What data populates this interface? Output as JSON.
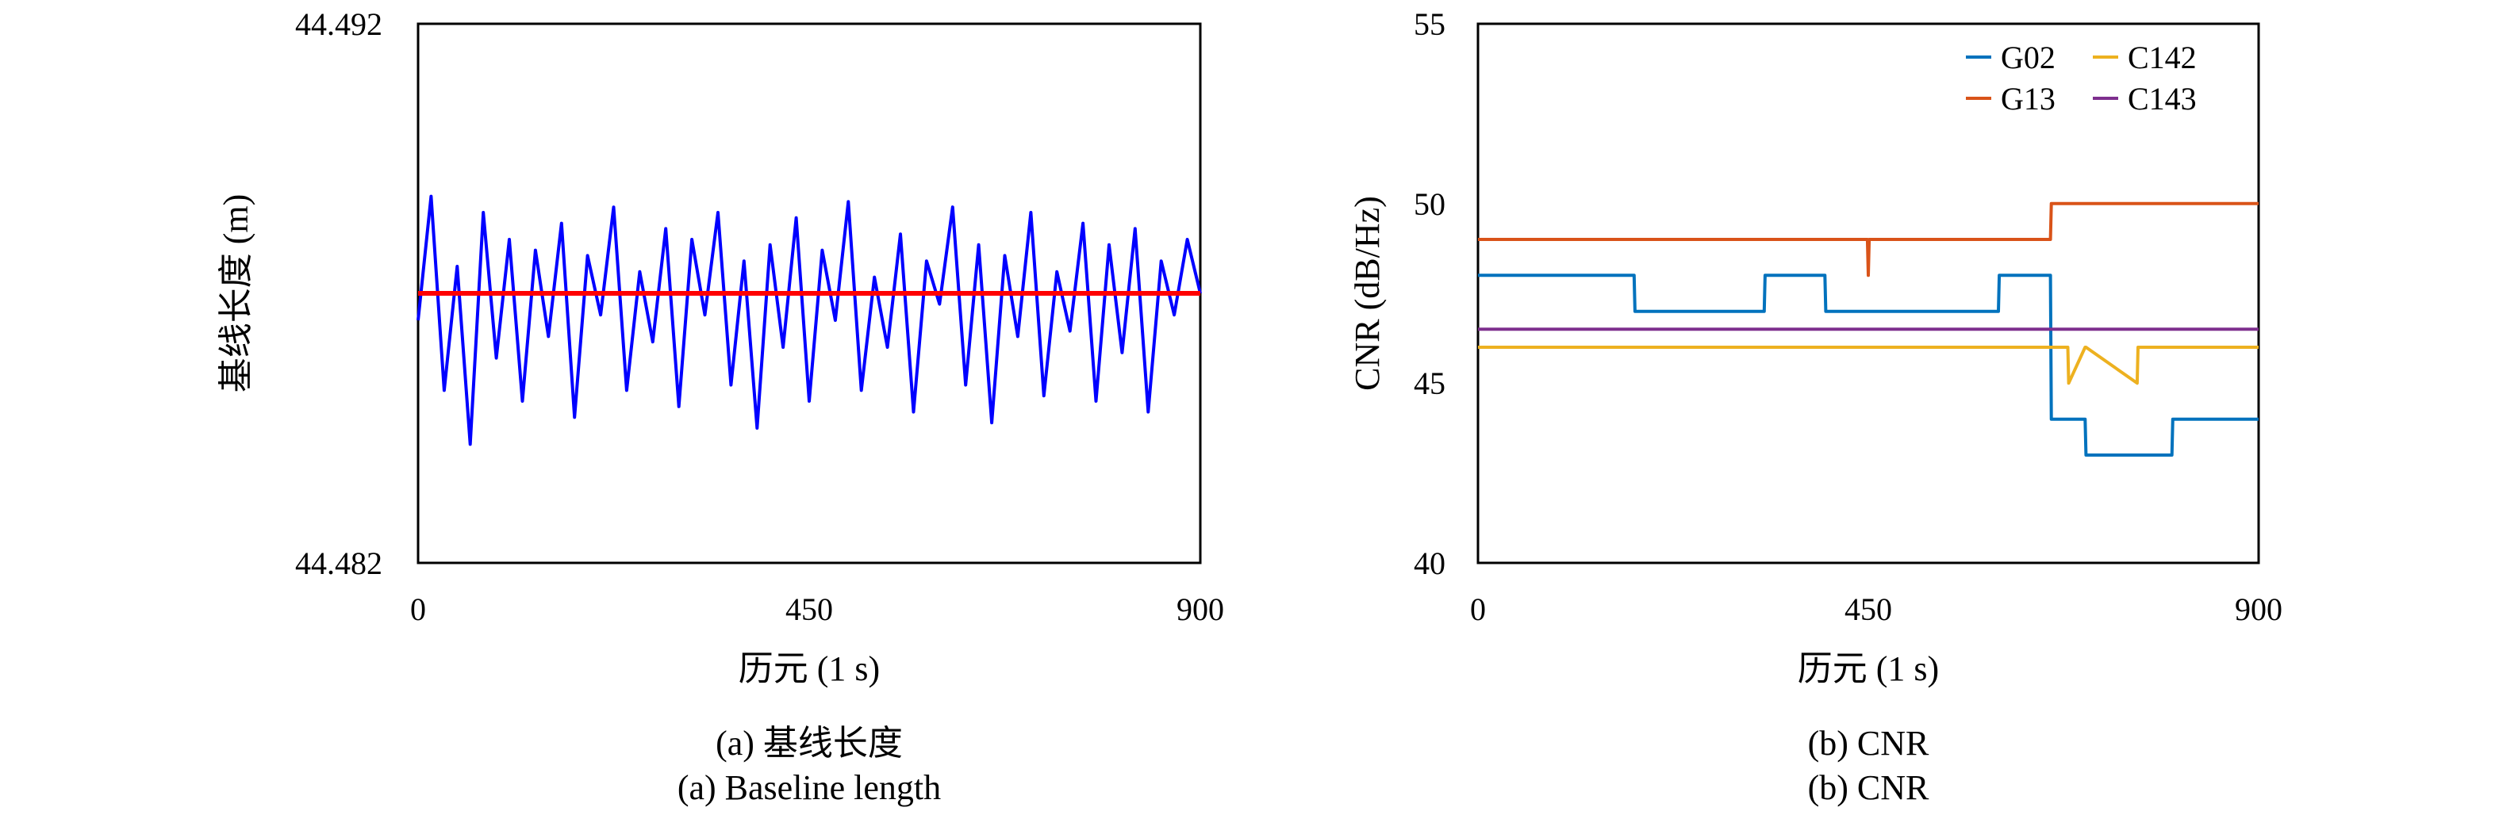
{
  "chart_data": [
    {
      "type": "line",
      "xlabel": "历元 (1 s)",
      "ylabel": "基线长度 (m)",
      "caption_cn": "(a) 基线长度",
      "caption_en": "(a) Baseline length",
      "xlim": [
        0,
        900
      ],
      "ylim": [
        44.482,
        44.492
      ],
      "xticks": [
        "0",
        "450",
        "900"
      ],
      "yticks": [
        "44.482",
        "44.492"
      ],
      "series": [
        {
          "color": "#0000ff",
          "x": [
            0,
            15,
            30,
            45,
            60,
            75,
            90,
            105,
            120,
            135,
            150,
            165,
            180,
            195,
            210,
            225,
            240,
            255,
            270,
            285,
            300,
            315,
            330,
            345,
            360,
            375,
            390,
            405,
            420,
            435,
            450,
            465,
            480,
            495,
            510,
            525,
            540,
            555,
            570,
            585,
            600,
            615,
            630,
            645,
            660,
            675,
            690,
            705,
            720,
            735,
            750,
            765,
            780,
            795,
            810,
            825,
            840,
            855,
            870,
            885,
            900
          ],
          "y": [
            44.4865,
            44.4888,
            44.4852,
            44.4875,
            44.4842,
            44.4885,
            44.4858,
            44.488,
            44.485,
            44.4878,
            44.4862,
            44.4883,
            44.4847,
            44.4877,
            44.4866,
            44.4886,
            44.4852,
            44.4874,
            44.4861,
            44.4882,
            44.4849,
            44.488,
            44.4866,
            44.4885,
            44.4853,
            44.4876,
            44.4845,
            44.4879,
            44.486,
            44.4884,
            44.485,
            44.4878,
            44.4865,
            44.4887,
            44.4852,
            44.4873,
            44.486,
            44.4881,
            44.4848,
            44.4876,
            44.4868,
            44.4886,
            44.4853,
            44.4879,
            44.4846,
            44.4877,
            44.4862,
            44.4885,
            44.4851,
            44.4874,
            44.4863,
            44.4883,
            44.485,
            44.4879,
            44.4859,
            44.4882,
            44.4848,
            44.4876,
            44.4866,
            44.488,
            44.487
          ]
        },
        {
          "color": "#ff0000",
          "x": [
            0,
            900
          ],
          "y": [
            44.487,
            44.487
          ]
        }
      ]
    },
    {
      "type": "line",
      "xlabel": "历元 (1 s)",
      "ylabel": "CNR (dB/Hz)",
      "caption_cn": "(b) CNR",
      "caption_en": "(b) CNR",
      "xlim": [
        0,
        900
      ],
      "ylim": [
        40,
        55
      ],
      "xticks": [
        "0",
        "450",
        "900"
      ],
      "yticks": [
        "40",
        "45",
        "50",
        "55"
      ],
      "legend": "top-right",
      "series": [
        {
          "name": "G02",
          "color": "#0072bd",
          "x": [
            0,
            180,
            181,
            330,
            331,
            400,
            401,
            600,
            601,
            660,
            661,
            700,
            701,
            800,
            801,
            900
          ],
          "y": [
            48,
            48,
            47,
            47,
            48,
            48,
            47,
            47,
            48,
            48,
            44,
            44,
            43,
            43,
            44,
            44
          ]
        },
        {
          "name": "G13",
          "color": "#d95319",
          "x": [
            0,
            449,
            450,
            451,
            660,
            661,
            900
          ],
          "y": [
            49,
            49,
            48,
            49,
            49,
            50,
            50
          ]
        },
        {
          "name": "C142",
          "color": "#edb120",
          "x": [
            0,
            680,
            681,
            700,
            701,
            760,
            761,
            900
          ],
          "y": [
            46,
            46,
            45,
            46,
            46,
            45,
            46,
            46
          ]
        },
        {
          "name": "C143",
          "color": "#7e2f8e",
          "x": [
            0,
            900
          ],
          "y": [
            46.5,
            46.5
          ]
        }
      ]
    }
  ]
}
